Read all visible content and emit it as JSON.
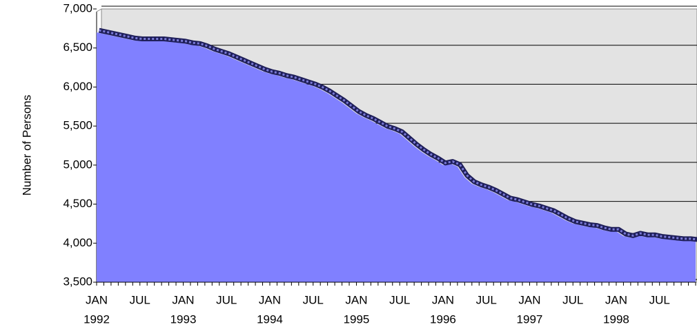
{
  "chart_data": {
    "type": "area",
    "y_label": "Number of Persons",
    "categories": [
      "JAN",
      null,
      null,
      null,
      null,
      null,
      "JUL",
      null,
      null,
      null,
      null,
      null,
      "JAN",
      null,
      null,
      null,
      null,
      null,
      "JUL",
      null,
      null,
      null,
      null,
      null,
      "JAN",
      null,
      null,
      null,
      null,
      null,
      "JUL",
      null,
      null,
      null,
      null,
      null,
      "JAN",
      null,
      null,
      null,
      null,
      null,
      "JUL",
      null,
      null,
      null,
      null,
      null,
      "JAN",
      null,
      null,
      null,
      null,
      null,
      "JUL",
      null,
      null,
      null,
      null,
      null,
      "JAN",
      null,
      null,
      null,
      null,
      null,
      "JUL",
      null,
      null,
      null,
      null,
      null,
      "JAN",
      null,
      null,
      null,
      null,
      null,
      "JUL",
      null,
      null,
      null,
      null,
      null
    ],
    "years": [
      "1992",
      "1993",
      "1994",
      "1995",
      "1996",
      "1997",
      "1998"
    ],
    "values": [
      6700,
      6680,
      6660,
      6640,
      6620,
      6600,
      6590,
      6590,
      6590,
      6590,
      6580,
      6570,
      6560,
      6540,
      6530,
      6500,
      6460,
      6430,
      6400,
      6360,
      6320,
      6280,
      6240,
      6200,
      6170,
      6150,
      6120,
      6100,
      6070,
      6040,
      6010,
      5970,
      5920,
      5860,
      5800,
      5730,
      5660,
      5610,
      5570,
      5520,
      5470,
      5440,
      5400,
      5320,
      5240,
      5170,
      5110,
      5060,
      5000,
      5020,
      4980,
      4840,
      4760,
      4720,
      4690,
      4650,
      4600,
      4550,
      4530,
      4500,
      4470,
      4450,
      4420,
      4390,
      4340,
      4290,
      4250,
      4230,
      4210,
      4200,
      4170,
      4150,
      4150,
      4090,
      4070,
      4100,
      4080,
      4080,
      4060,
      4050,
      4040,
      4030,
      4030,
      4020
    ],
    "color": "#8080ff",
    "line_color": "#1f1f5a",
    "plot_background": "#e3e3e3",
    "ylim": [
      3500,
      7000
    ],
    "yticks": [
      {
        "value": 3500,
        "label": "3,500"
      },
      {
        "value": 4000,
        "label": "4,000"
      },
      {
        "value": 4500,
        "label": "4,500"
      },
      {
        "value": 5000,
        "label": "5,000"
      },
      {
        "value": 5500,
        "label": "5,500"
      },
      {
        "value": 6000,
        "label": "6,000"
      },
      {
        "value": 6500,
        "label": "6,500"
      },
      {
        "value": 7000,
        "label": "7,000"
      }
    ],
    "grid": true
  }
}
